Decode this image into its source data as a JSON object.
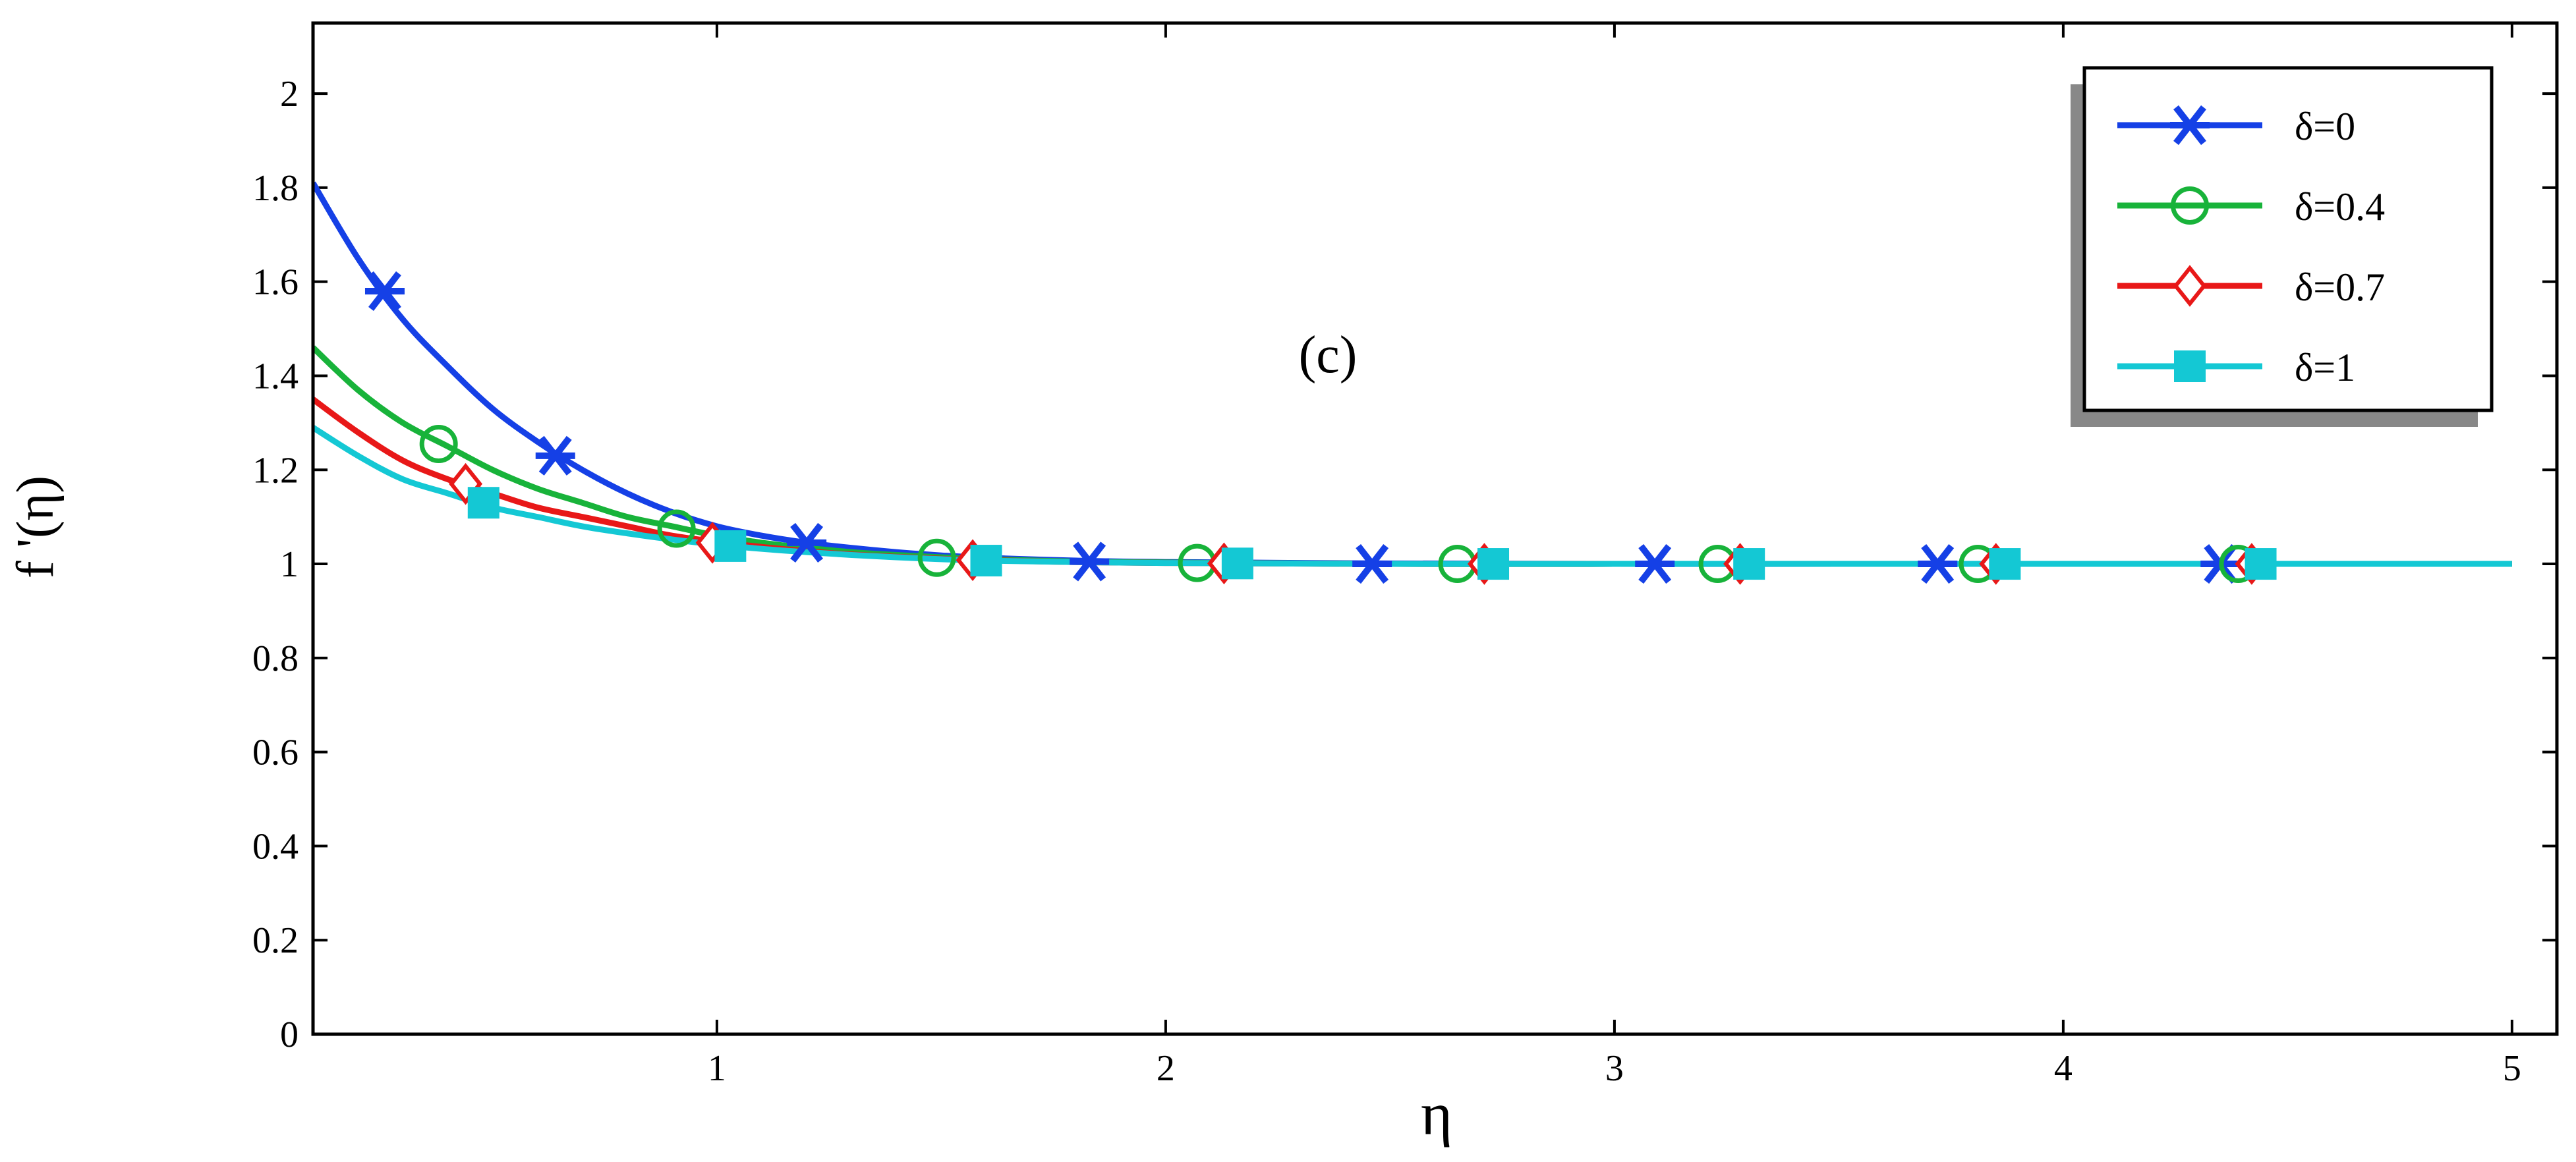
{
  "chart_data": {
    "type": "line",
    "title": "",
    "annotation": "(c)",
    "xlabel": "η",
    "ylabel": "f '(η)",
    "xlim": [
      0.1,
      5.1
    ],
    "ylim": [
      0,
      2.15
    ],
    "x_ticks": [
      1,
      2,
      3,
      4,
      5
    ],
    "y_ticks": [
      0,
      0.2,
      0.4,
      0.6,
      0.8,
      1,
      1.2,
      1.4,
      1.6,
      1.8,
      2
    ],
    "grid": false,
    "legend_position": "top-right",
    "series": [
      {
        "name": "δ=0",
        "color": "#1540e6",
        "marker": "asterisk",
        "x": [
          0.1,
          0.2,
          0.3,
          0.4,
          0.5,
          0.6,
          0.7,
          0.8,
          0.9,
          1.0,
          1.1,
          1.2,
          1.3,
          1.4,
          1.5,
          1.6,
          1.8,
          2.0,
          2.5,
          3.0,
          3.5,
          4.0,
          4.5,
          5.0
        ],
        "y": [
          1.81,
          1.65,
          1.52,
          1.42,
          1.33,
          1.26,
          1.2,
          1.15,
          1.11,
          1.08,
          1.06,
          1.045,
          1.034,
          1.025,
          1.018,
          1.013,
          1.007,
          1.004,
          1.001,
          1.0,
          1.0,
          1.0,
          1.0,
          1.0
        ],
        "marker_x": [
          0.26,
          0.64,
          1.2,
          1.83,
          2.46,
          3.09,
          3.72,
          4.35
        ],
        "marker_y": [
          1.58,
          1.23,
          1.045,
          1.005,
          1.0,
          1.0,
          1.0,
          1.0
        ]
      },
      {
        "name": "δ=0.4",
        "color": "#18b33a",
        "marker": "circle",
        "x": [
          0.1,
          0.2,
          0.3,
          0.4,
          0.5,
          0.6,
          0.7,
          0.8,
          0.9,
          1.0,
          1.1,
          1.2,
          1.3,
          1.4,
          1.5,
          1.6,
          1.8,
          2.0,
          2.5,
          3.0,
          3.5,
          4.0,
          4.5,
          5.0
        ],
        "y": [
          1.46,
          1.37,
          1.3,
          1.25,
          1.2,
          1.16,
          1.13,
          1.1,
          1.08,
          1.06,
          1.045,
          1.034,
          1.025,
          1.019,
          1.014,
          1.01,
          1.005,
          1.003,
          1.0,
          1.0,
          1.0,
          1.0,
          1.0,
          1.0
        ],
        "marker_x": [
          0.38,
          0.91,
          1.49,
          2.07,
          2.65,
          3.23,
          3.81,
          4.39
        ],
        "marker_y": [
          1.255,
          1.075,
          1.013,
          1.002,
          1.0,
          1.0,
          1.0,
          1.0
        ]
      },
      {
        "name": "δ=0.7",
        "color": "#e81818",
        "marker": "diamond",
        "x": [
          0.1,
          0.2,
          0.3,
          0.4,
          0.5,
          0.6,
          0.7,
          0.8,
          0.9,
          1.0,
          1.1,
          1.2,
          1.3,
          1.4,
          1.5,
          1.6,
          1.8,
          2.0,
          2.5,
          3.0,
          3.5,
          4.0,
          4.5,
          5.0
        ],
        "y": [
          1.35,
          1.28,
          1.22,
          1.18,
          1.15,
          1.12,
          1.1,
          1.08,
          1.06,
          1.047,
          1.036,
          1.027,
          1.02,
          1.015,
          1.011,
          1.008,
          1.004,
          1.002,
          1.0,
          1.0,
          1.0,
          1.0,
          1.0,
          1.0
        ],
        "marker_x": [
          0.44,
          0.99,
          1.57,
          2.13,
          2.71,
          3.28,
          3.85,
          4.42
        ],
        "marker_y": [
          1.17,
          1.045,
          1.008,
          1.001,
          1.0,
          1.0,
          1.0,
          1.0
        ]
      },
      {
        "name": "δ=1",
        "color": "#14c8d4",
        "marker": "square",
        "x": [
          0.1,
          0.2,
          0.3,
          0.4,
          0.5,
          0.6,
          0.7,
          0.8,
          0.9,
          1.0,
          1.1,
          1.2,
          1.3,
          1.4,
          1.5,
          1.6,
          1.8,
          2.0,
          2.5,
          3.0,
          3.5,
          4.0,
          4.5,
          5.0
        ],
        "y": [
          1.29,
          1.23,
          1.18,
          1.15,
          1.12,
          1.1,
          1.08,
          1.065,
          1.052,
          1.041,
          1.032,
          1.025,
          1.019,
          1.014,
          1.01,
          1.007,
          1.004,
          1.002,
          1.0,
          1.0,
          1.0,
          1.0,
          1.0,
          1.0
        ],
        "marker_x": [
          0.48,
          1.03,
          1.6,
          2.16,
          2.73,
          3.3,
          3.87,
          4.44
        ],
        "marker_y": [
          1.13,
          1.038,
          1.007,
          1.001,
          1.0,
          1.0,
          1.0,
          1.0
        ]
      }
    ]
  }
}
